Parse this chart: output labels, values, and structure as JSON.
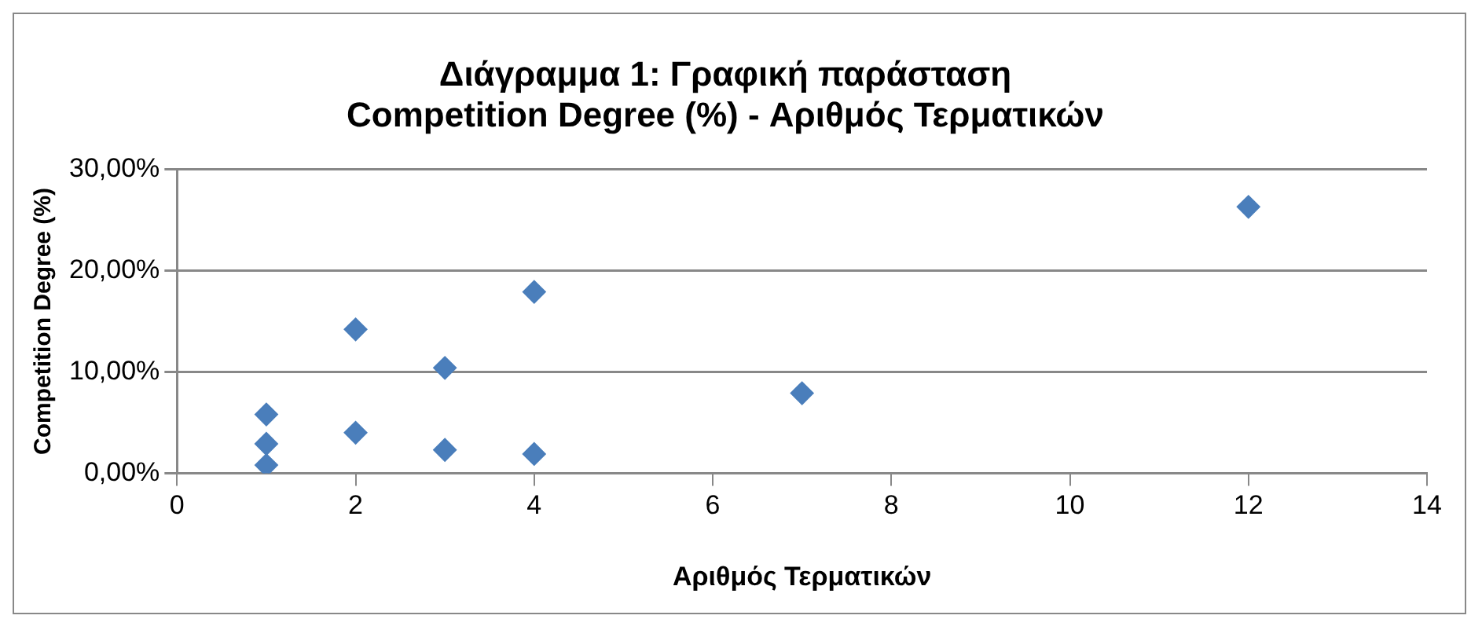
{
  "chart_data": {
    "type": "scatter",
    "title": "Διάγραμμα 1: Γραφική παράσταση\nCompetition Degree (%) - Αριθμός Τερματικών",
    "xlabel": "Αριθμός Τερματικών",
    "ylabel": "Competition Degree (%)",
    "x": [
      1,
      1,
      1,
      2,
      2,
      3,
      3,
      4,
      4,
      7,
      12
    ],
    "series": [
      {
        "color": "#4a7ebb",
        "values": [
          5.8,
          2.9,
          0.8,
          14.2,
          4.0,
          10.4,
          2.3,
          17.9,
          1.9,
          7.9,
          26.3
        ]
      }
    ],
    "xlim": [
      0,
      14
    ],
    "xticks": [
      0,
      2,
      4,
      6,
      8,
      10,
      12,
      14
    ],
    "ylim": [
      0,
      30
    ],
    "yticks": [
      {
        "value": 0,
        "label": "0,00%"
      },
      {
        "value": 10,
        "label": "10,00%"
      },
      {
        "value": 20,
        "label": "20,00%"
      },
      {
        "value": 30,
        "label": "30,00%"
      }
    ],
    "grid": "y",
    "legend": false,
    "marker": "diamond"
  }
}
